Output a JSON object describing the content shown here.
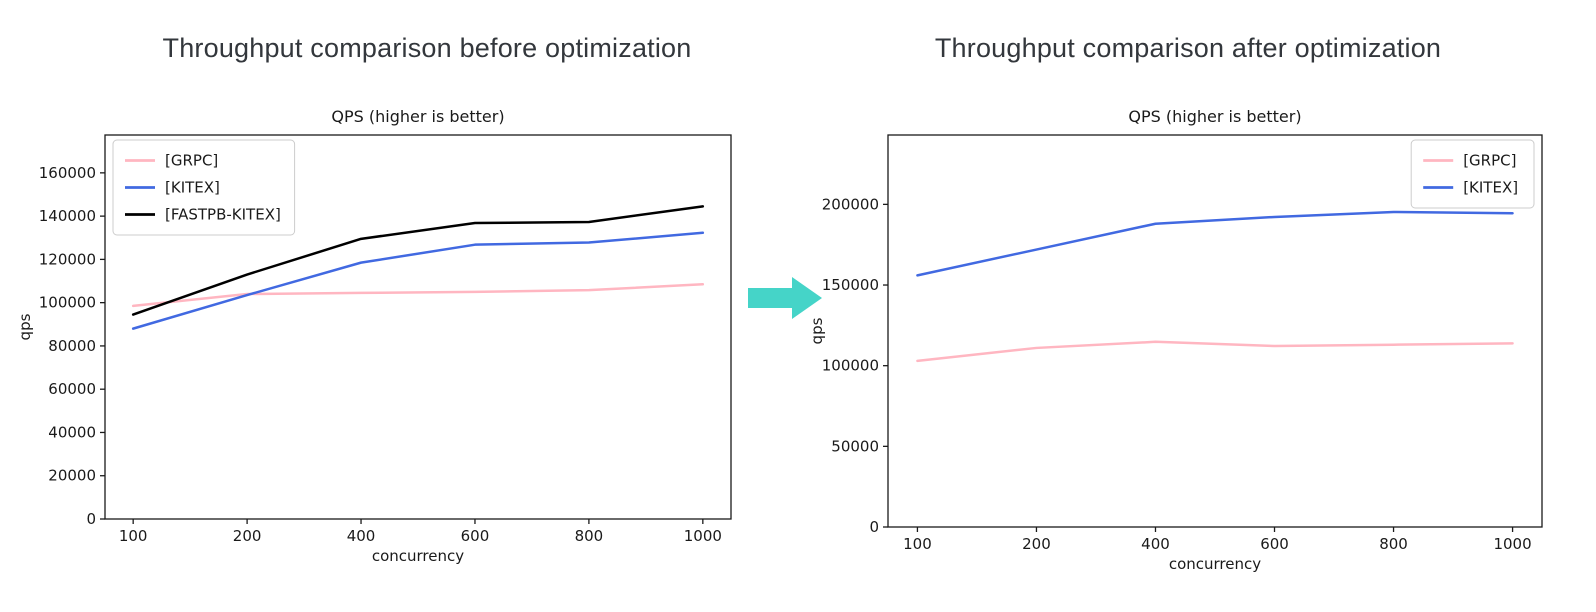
{
  "page": {
    "left_heading": "Throughput comparison before optimization",
    "right_heading": "Throughput comparison after optimization"
  },
  "arrow": {
    "name": "right-arrow",
    "color": "#45d4c8"
  },
  "chart_data": [
    {
      "type": "line",
      "title": "QPS (higher is better)",
      "xlabel": "concurrency",
      "ylabel": "qps",
      "categories": [
        100,
        200,
        400,
        600,
        800,
        1000
      ],
      "series": [
        {
          "name": "[GRPC]",
          "color": "#ffb6c1",
          "values": [
            98500,
            104000,
            104500,
            105000,
            105800,
            108500
          ]
        },
        {
          "name": "[KITEX]",
          "color": "#4169e1",
          "values": [
            88000,
            103500,
            118500,
            126800,
            127800,
            132300
          ]
        },
        {
          "name": "[FASTPB-KITEX]",
          "color": "#000000",
          "values": [
            94500,
            113000,
            129500,
            136800,
            137300,
            144500
          ]
        }
      ],
      "ylim": [
        0,
        177500
      ],
      "yticks": [
        0,
        20000,
        40000,
        60000,
        80000,
        100000,
        120000,
        140000,
        160000
      ],
      "legend_position": "upper-left",
      "grid": false
    },
    {
      "type": "line",
      "title": "QPS (higher is better)",
      "xlabel": "concurrency",
      "ylabel": "qps",
      "categories": [
        100,
        200,
        400,
        600,
        800,
        1000
      ],
      "series": [
        {
          "name": "[GRPC]",
          "color": "#ffb6c1",
          "values": [
            103000,
            111000,
            114800,
            112200,
            113000,
            113800
          ]
        },
        {
          "name": "[KITEX]",
          "color": "#4169e1",
          "values": [
            156000,
            172000,
            188000,
            192200,
            195300,
            194500
          ]
        }
      ],
      "ylim": [
        0,
        243000
      ],
      "yticks": [
        0,
        50000,
        100000,
        150000,
        200000
      ],
      "legend_position": "upper-right",
      "grid": false
    }
  ]
}
